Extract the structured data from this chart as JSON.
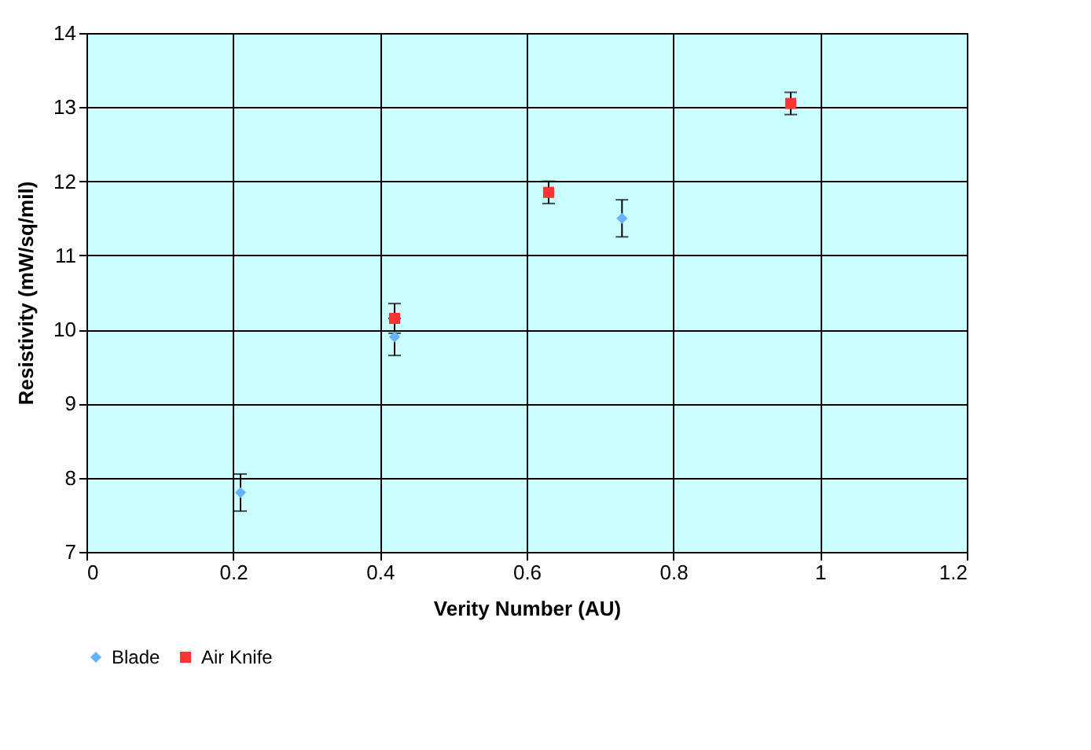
{
  "chart_data": {
    "type": "scatter",
    "xlabel": "Verity Number (AU)",
    "ylabel": "Resistivity (mW/sq/mil)",
    "xlim": [
      0,
      1.2
    ],
    "xticks": [
      0,
      0.2,
      0.4,
      0.6,
      0.8,
      1,
      1.2
    ],
    "ylim": [
      7,
      14
    ],
    "yticks": [
      7,
      8,
      9,
      10,
      11,
      12,
      13,
      14
    ],
    "grid": true,
    "legend": "bottom",
    "series": [
      {
        "name": "Blade",
        "color": "#66b2ff",
        "marker": "diamond",
        "x": [
          0.21,
          0.42,
          0.73
        ],
        "values": [
          7.8,
          9.9,
          11.5
        ],
        "errors": [
          0.25,
          0.25,
          0.25
        ]
      },
      {
        "name": "Air Knife",
        "color": "#ff3333",
        "marker": "square",
        "x": [
          0.42,
          0.63,
          0.96
        ],
        "values": [
          10.15,
          11.85,
          13.05
        ],
        "errors": [
          0.2,
          0.15,
          0.15
        ]
      }
    ]
  }
}
